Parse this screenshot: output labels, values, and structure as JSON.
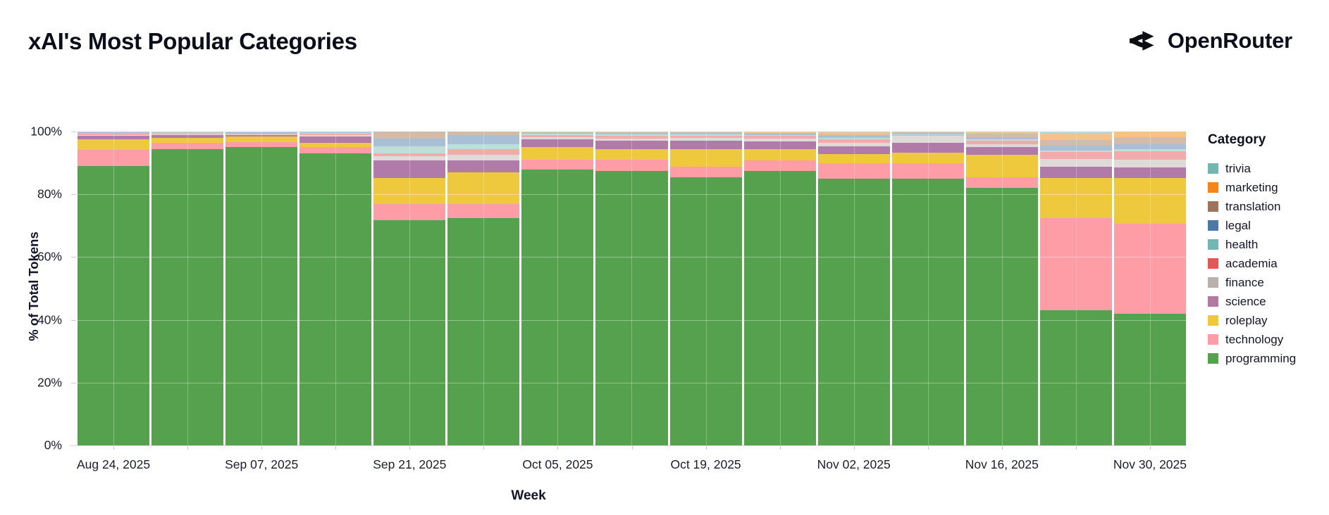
{
  "header": {
    "title": "xAI's Most Popular Categories",
    "brand": "OpenRouter"
  },
  "icon_colors": {
    "brand_mark": "#0c0e14"
  },
  "chart_data": {
    "type": "bar",
    "variant": "stacked-normalized",
    "title": "xAI's Most Popular Categories",
    "xlabel": "Week",
    "ylabel": "% of Total Tokens",
    "ylim": [
      0,
      100
    ],
    "grid": true,
    "legend_position": "right",
    "legend_title": "Category",
    "y_ticks": [
      {
        "value": 0,
        "label": "0%"
      },
      {
        "value": 20,
        "label": "20%"
      },
      {
        "value": 40,
        "label": "40%"
      },
      {
        "value": 60,
        "label": "60%"
      },
      {
        "value": 80,
        "label": "80%"
      },
      {
        "value": 100,
        "label": "100%"
      }
    ],
    "categories_weeks": [
      "Aug 24, 2025",
      "Aug 31, 2025",
      "Sep 07, 2025",
      "Sep 14, 2025",
      "Sep 21, 2025",
      "Sep 28, 2025",
      "Oct 05, 2025",
      "Oct 12, 2025",
      "Oct 19, 2025",
      "Oct 26, 2025",
      "Nov 02, 2025",
      "Nov 09, 2025",
      "Nov 16, 2025",
      "Nov 23, 2025",
      "Nov 30, 2025"
    ],
    "x_tick_labels": [
      "Aug 24, 2025",
      "Sep 07, 2025",
      "Sep 21, 2025",
      "Oct 05, 2025",
      "Oct 19, 2025",
      "Nov 02, 2025",
      "Nov 16, 2025",
      "Nov 30, 2025"
    ],
    "x_tick_label_every_n_bars": 2,
    "legend": [
      {
        "name": "trivia",
        "legend_color": "#72b7b2",
        "bar_color": "#b7d9dc"
      },
      {
        "name": "marketing",
        "legend_color": "#f58518",
        "bar_color": "#f9c285"
      },
      {
        "name": "translation",
        "legend_color": "#9d755d",
        "bar_color": "#d3bba9"
      },
      {
        "name": "legal",
        "legend_color": "#4c78a8",
        "bar_color": "#a9bfd6"
      },
      {
        "name": "health",
        "legend_color": "#72b7b2",
        "bar_color": "#bfdeda"
      },
      {
        "name": "academia",
        "legend_color": "#e45756",
        "bar_color": "#f2abaa"
      },
      {
        "name": "finance",
        "legend_color": "#bab0ac",
        "bar_color": "#dedad7"
      },
      {
        "name": "science",
        "legend_color": "#b279a2",
        "bar_color": "#b07ba8"
      },
      {
        "name": "roleplay",
        "legend_color": "#eeca3b",
        "bar_color": "#eec93d"
      },
      {
        "name": "technology",
        "legend_color": "#ff9da6",
        "bar_color": "#ff9da6"
      },
      {
        "name": "programming",
        "legend_color": "#54a24b",
        "bar_color": "#55a14d"
      }
    ],
    "stack_order_bottom_to_top": [
      "programming",
      "technology",
      "roleplay",
      "science",
      "finance",
      "academia",
      "health",
      "legal",
      "translation",
      "marketing",
      "trivia"
    ],
    "series": [
      {
        "name": "programming",
        "values": [
          89.0,
          94.5,
          95.0,
          93.0,
          71.7,
          72.5,
          88.0,
          87.5,
          85.5,
          87.5,
          85.0,
          85.0,
          82.0,
          43.0,
          42.0
        ]
      },
      {
        "name": "technology",
        "values": [
          5.2,
          2.0,
          1.6,
          2.0,
          5.2,
          4.5,
          3.0,
          3.5,
          3.4,
          3.3,
          5.0,
          5.0,
          3.5,
          29.4,
          28.6
        ]
      },
      {
        "name": "roleplay",
        "values": [
          3.3,
          1.5,
          1.8,
          1.5,
          8.3,
          10.0,
          4.0,
          3.5,
          5.6,
          3.6,
          2.8,
          3.3,
          7.0,
          12.8,
          14.6
        ]
      },
      {
        "name": "science",
        "values": [
          1.2,
          0.8,
          0.6,
          1.9,
          5.6,
          3.8,
          2.5,
          2.5,
          2.6,
          2.5,
          2.5,
          3.1,
          2.5,
          3.6,
          3.4
        ]
      },
      {
        "name": "finance",
        "values": [
          0.3,
          0.2,
          0.2,
          0.4,
          1.4,
          1.7,
          0.7,
          0.8,
          0.8,
          0.8,
          1.1,
          2.2,
          1.0,
          2.5,
          2.5
        ]
      },
      {
        "name": "academia",
        "values": [
          0.5,
          0.4,
          0.3,
          0.5,
          0.9,
          1.8,
          0.8,
          0.9,
          0.8,
          0.9,
          1.2,
          0.4,
          1.0,
          2.2,
          2.6
        ]
      },
      {
        "name": "health",
        "values": [
          0.1,
          0.1,
          0.1,
          0.2,
          2.2,
          1.7,
          0.3,
          0.4,
          0.4,
          0.4,
          0.5,
          0.2,
          0.5,
          0.5,
          0.7
        ]
      },
      {
        "name": "legal",
        "values": [
          0.1,
          0.1,
          0.1,
          0.2,
          2.5,
          3.0,
          0.2,
          0.3,
          0.3,
          0.3,
          0.5,
          0.2,
          0.8,
          1.5,
          1.6
        ]
      },
      {
        "name": "translation",
        "values": [
          0.1,
          0.1,
          0.1,
          0.1,
          2.2,
          1.0,
          0.2,
          0.3,
          0.3,
          0.3,
          0.6,
          0.3,
          1.0,
          1.8,
          2.2
        ]
      },
      {
        "name": "marketing",
        "values": [
          0.1,
          0.1,
          0.1,
          0.1,
          0.0,
          0.0,
          0.1,
          0.1,
          0.1,
          0.2,
          0.5,
          0.2,
          0.4,
          2.2,
          1.8
        ]
      },
      {
        "name": "trivia",
        "values": [
          0.1,
          0.2,
          0.1,
          0.1,
          0.0,
          0.0,
          0.2,
          0.2,
          0.2,
          0.2,
          0.3,
          0.1,
          0.3,
          0.5,
          0.0
        ]
      }
    ]
  }
}
